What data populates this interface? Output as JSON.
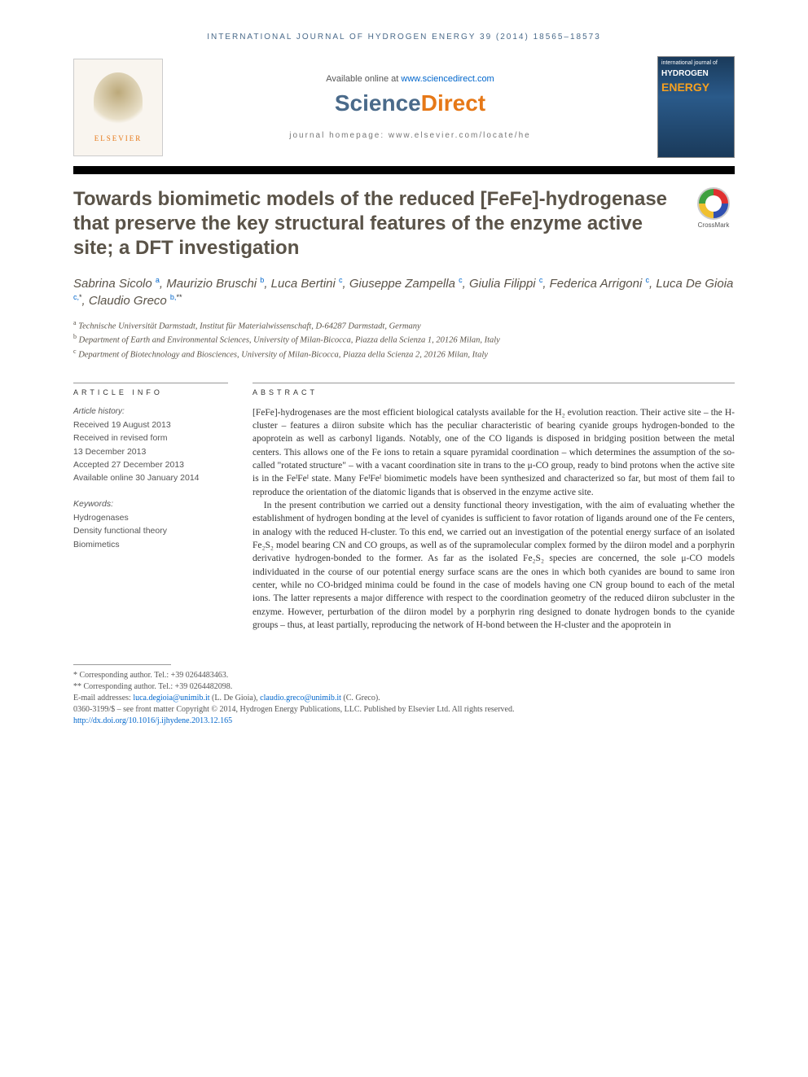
{
  "running_head": "INTERNATIONAL JOURNAL OF HYDROGEN ENERGY 39 (2014) 18565–18573",
  "header": {
    "publisher": "ELSEVIER",
    "available_prefix": "Available online at ",
    "available_link": "www.sciencedirect.com",
    "sd_name_1": "Science",
    "sd_name_2": "Direct",
    "homepage_label": "journal homepage: www.elsevier.com/locate/he",
    "cover_small": "international journal of",
    "cover_line1": "HYDROGEN",
    "cover_line2": "ENERGY"
  },
  "crossmark_label": "CrossMark",
  "title": "Towards biomimetic models of the reduced [FeFe]-hydrogenase that preserve the key structural features of the enzyme active site; a DFT investigation",
  "authors_html": "Sabrina Sicolo <sup>a</sup>, Maurizio Bruschi <sup>b</sup>, Luca Bertini <sup>c</sup>, Giuseppe Zampella <sup>c</sup>, Giulia Filippi <sup>c</sup>, Federica Arrigoni <sup>c</sup>, Luca De Gioia <sup>c,</sup><sup class=\"sup-star\">*</sup>, Claudio Greco <sup>b,</sup><sup class=\"sup-star\">**</sup>",
  "affiliations": [
    {
      "sup": "a",
      "text": "Technische Universität Darmstadt, Institut für Materialwissenschaft, D-64287 Darmstadt, Germany"
    },
    {
      "sup": "b",
      "text": "Department of Earth and Environmental Sciences, University of Milan-Bicocca, Piazza della Scienza 1, 20126 Milan, Italy"
    },
    {
      "sup": "c",
      "text": "Department of Biotechnology and Biosciences, University of Milan-Bicocca, Piazza della Scienza 2, 20126 Milan, Italy"
    }
  ],
  "article_info": {
    "heading": "ARTICLE INFO",
    "history_label": "Article history:",
    "history": [
      "Received 19 August 2013",
      "Received in revised form",
      "13 December 2013",
      "Accepted 27 December 2013",
      "Available online 30 January 2014"
    ],
    "keywords_label": "Keywords:",
    "keywords": [
      "Hydrogenases",
      "Density functional theory",
      "Biomimetics"
    ]
  },
  "abstract": {
    "heading": "ABSTRACT",
    "p1": "[FeFe]-hydrogenases are the most efficient biological catalysts available for the H₂ evolution reaction. Their active site – the H-cluster – features a diiron subsite which has the peculiar characteristic of bearing cyanide groups hydrogen-bonded to the apoprotein as well as carbonyl ligands. Notably, one of the CO ligands is disposed in bridging position between the metal centers. This allows one of the Fe ions to retain a square pyramidal coordination – which determines the assumption of the so-called \"rotated structure\" – with a vacant coordination site in trans to the μ-CO group, ready to bind protons when the active site is in the FeᴵFeᴵ state. Many FeᴵFeᴵ biomimetic models have been synthesized and characterized so far, but most of them fail to reproduce the orientation of the diatomic ligands that is observed in the enzyme active site.",
    "p2": "In the present contribution we carried out a density functional theory investigation, with the aim of evaluating whether the establishment of hydrogen bonding at the level of cyanides is sufficient to favor rotation of ligands around one of the Fe centers, in analogy with the reduced H-cluster. To this end, we carried out an investigation of the potential energy surface of an isolated Fe₂S₂ model bearing CN and CO groups, as well as of the supramolecular complex formed by the diiron model and a porphyrin derivative hydrogen-bonded to the former. As far as the isolated Fe₂S₂ species are concerned, the sole μ-CO models individuated in the course of our potential energy surface scans are the ones in which both cyanides are bound to same iron center, while no CO-bridged minima could be found in the case of models having one CN group bound to each of the metal ions. The latter represents a major difference with respect to the coordination geometry of the reduced diiron subcluster in the enzyme. However, perturbation of the diiron model by a porphyrin ring designed to donate hydrogen bonds to the cyanide groups – thus, at least partially, reproducing the network of H-bond between the H-cluster and the apoprotein in"
  },
  "footnotes": {
    "c1_label": "* Corresponding author. Tel.: +39 0264483463.",
    "c2_label": "** Corresponding author. Tel.: +39 0264482098.",
    "email_label": "E-mail addresses: ",
    "email1": "luca.degioia@unimib.it",
    "email1_who": " (L. De Gioia), ",
    "email2": "claudio.greco@unimib.it",
    "email2_who": " (C. Greco).",
    "issn_line": "0360-3199/$ – see front matter Copyright © 2014, Hydrogen Energy Publications, LLC. Published by Elsevier Ltd. All rights reserved.",
    "doi": "http://dx.doi.org/10.1016/j.ijhydene.2013.12.165"
  }
}
